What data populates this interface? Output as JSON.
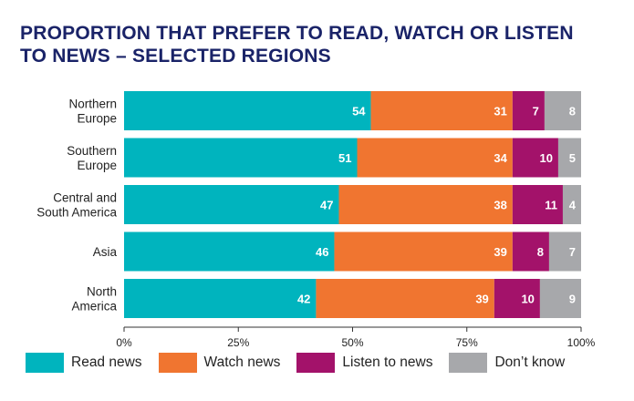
{
  "title_line1": "PROPORTION THAT PREFER TO READ, WATCH OR LISTEN",
  "title_line2": "TO NEWS – SELECTED REGIONS",
  "chart_data": {
    "type": "bar",
    "orientation": "horizontal",
    "stacked": true,
    "title": "PROPORTION THAT PREFER TO READ, WATCH OR LISTEN TO NEWS – SELECTED REGIONS",
    "categories": [
      [
        "Northern",
        "Europe"
      ],
      [
        "Southern",
        "Europe"
      ],
      [
        "Central and",
        "South America"
      ],
      [
        "Asia"
      ],
      [
        "North",
        "America"
      ]
    ],
    "series": [
      {
        "name": "Read news",
        "color": "#00b4be",
        "values": [
          54,
          51,
          47,
          46,
          42
        ]
      },
      {
        "name": "Watch news",
        "color": "#f07530",
        "values": [
          31,
          34,
          38,
          39,
          39
        ]
      },
      {
        "name": "Listen to news",
        "color": "#a3126a",
        "values": [
          7,
          10,
          11,
          8,
          10
        ]
      },
      {
        "name": "Don’t know",
        "color": "#a7a8ab",
        "values": [
          8,
          5,
          4,
          7,
          9
        ]
      }
    ],
    "xlim": [
      0,
      100
    ],
    "xticks": [
      "0%",
      "25%",
      "50%",
      "75%",
      "100%"
    ],
    "legend_position": "bottom",
    "grid": false
  }
}
